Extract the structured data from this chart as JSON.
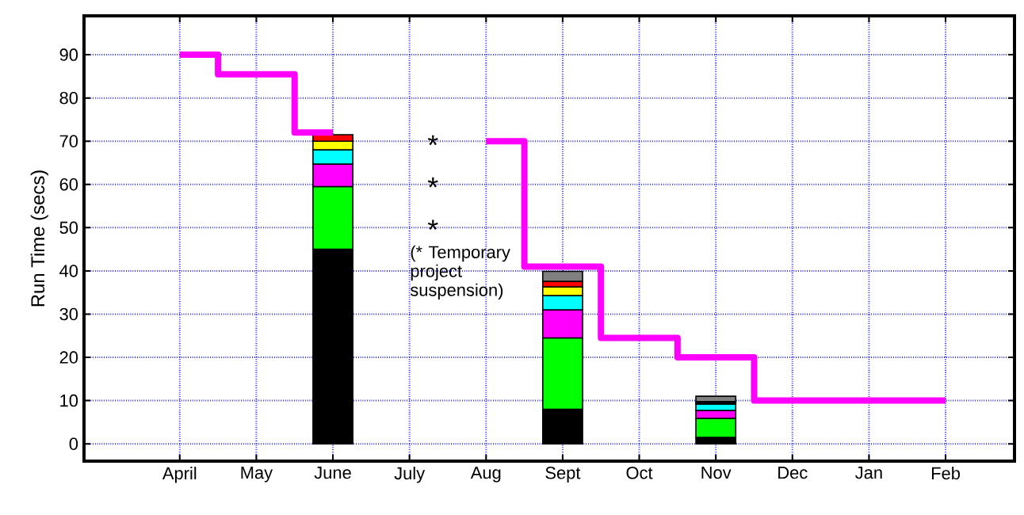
{
  "chart_data": {
    "type": "bar",
    "stacked": true,
    "ylabel": "Run Time  (secs)",
    "ylim": [
      -4,
      99
    ],
    "categories": [
      "April",
      "May",
      "June",
      "July",
      "Aug",
      "Sept",
      "Oct",
      "Nov",
      "Dec",
      "Jan",
      "Feb"
    ],
    "yticks": [
      0,
      10,
      20,
      30,
      40,
      50,
      60,
      70,
      80,
      90
    ],
    "grid": true,
    "series": [
      {
        "color": "#000000",
        "values": [
          null,
          null,
          45,
          null,
          null,
          8,
          null,
          1.5,
          null,
          null,
          null
        ]
      },
      {
        "color": "#00ff00",
        "values": [
          null,
          null,
          14.5,
          null,
          null,
          16.5,
          null,
          4.4,
          null,
          null,
          null
        ]
      },
      {
        "color": "#ff00ff",
        "values": [
          null,
          null,
          5.2,
          null,
          null,
          6.5,
          null,
          1.8,
          null,
          null,
          null
        ]
      },
      {
        "color": "#00ffff",
        "values": [
          null,
          null,
          3.3,
          null,
          null,
          3.3,
          null,
          1.5,
          null,
          null,
          null
        ]
      },
      {
        "color": "#ffff00",
        "values": [
          null,
          null,
          2,
          null,
          null,
          2,
          null,
          0.3,
          null,
          null,
          null
        ]
      },
      {
        "color": "#ff0000",
        "values": [
          null,
          null,
          1.5,
          null,
          null,
          1.3,
          null,
          0.3,
          null,
          null,
          null
        ]
      },
      {
        "color": "#808080",
        "values": [
          null,
          null,
          null,
          null,
          null,
          2.3,
          null,
          1.2,
          null,
          null,
          null
        ]
      },
      {
        "type": "step",
        "color": "#ff00ff",
        "values": [
          90,
          85.5,
          72,
          null,
          null,
          null,
          null,
          null,
          null,
          null,
          null
        ]
      },
      {
        "type": "step",
        "color": "#ff00ff",
        "values": [
          null,
          null,
          null,
          null,
          70,
          41,
          24.5,
          20,
          10,
          10,
          10
        ]
      }
    ],
    "annotations": [
      "*",
      "*",
      "*",
      "(* Temporary project suspension)"
    ]
  }
}
